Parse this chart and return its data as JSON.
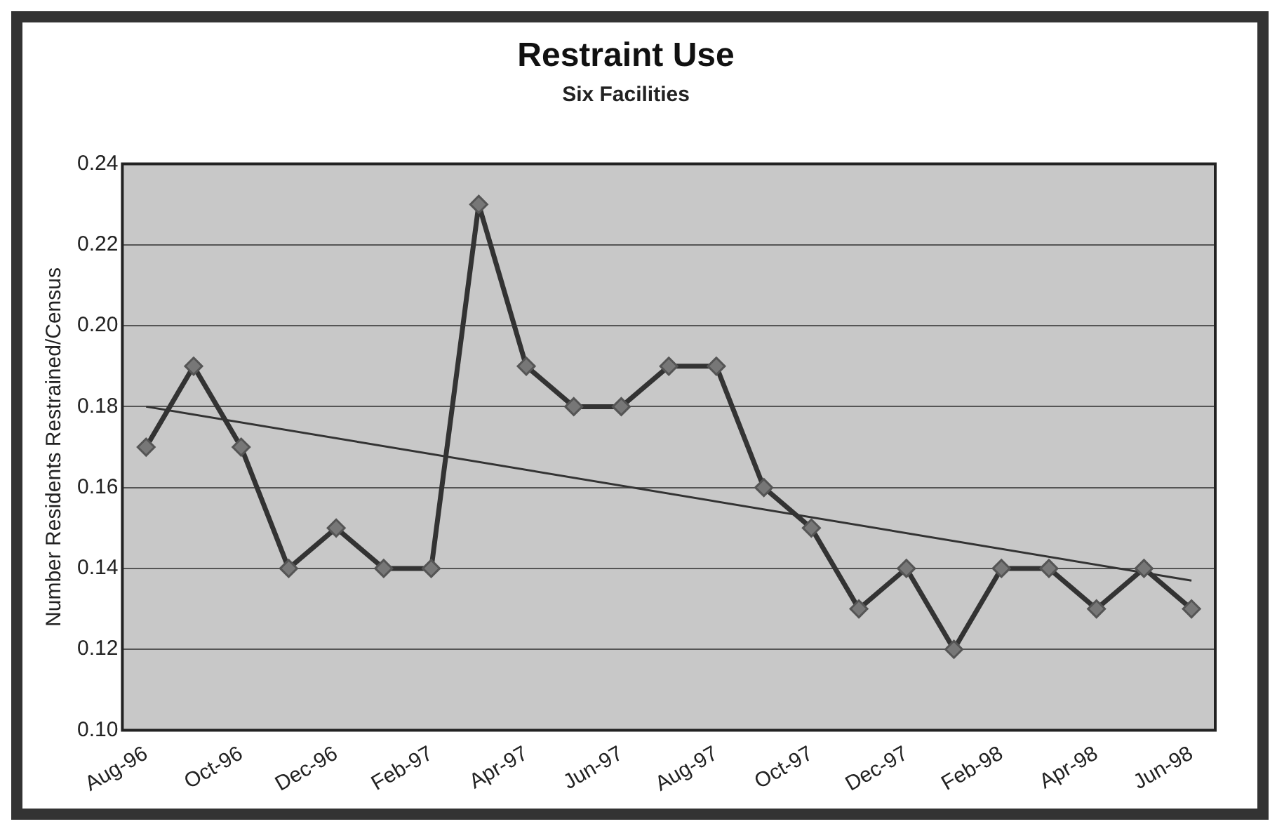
{
  "chart_data": {
    "type": "line",
    "title": "Restraint Use",
    "subtitle": "Six Facilities",
    "ylabel": "Number Residents Restrained/Census",
    "categories": [
      "Aug-96",
      null,
      "Oct-96",
      null,
      "Dec-96",
      null,
      "Feb-97",
      null,
      "Apr-97",
      null,
      "Jun-97",
      null,
      "Aug-97",
      null,
      "Oct-97",
      null,
      "Dec-97",
      null,
      "Feb-98",
      null,
      "Apr-98",
      null,
      "Jun-98"
    ],
    "series": [
      {
        "color": "#333333",
        "marker": "diamond",
        "values": [
          0.17,
          0.19,
          0.17,
          0.14,
          0.15,
          0.14,
          0.14,
          0.23,
          0.19,
          0.18,
          0.18,
          0.19,
          0.19,
          0.16,
          0.15,
          0.13,
          0.14,
          0.12,
          0.14,
          0.14,
          0.13,
          0.14,
          0.13
        ]
      },
      {
        "type": "line",
        "color": "#333333",
        "marker": "none",
        "x": [
          "Aug-96",
          "Jun-98"
        ],
        "values": [
          0.18,
          0.137
        ]
      }
    ],
    "ylim": [
      0.1,
      0.24
    ],
    "yticks": [
      {
        "value": 0.1,
        "label": "0.10"
      },
      {
        "value": 0.12,
        "label": "0.12"
      },
      {
        "value": 0.14,
        "label": "0.14"
      },
      {
        "value": 0.16,
        "label": "0.16"
      },
      {
        "value": 0.18,
        "label": "0.18"
      },
      {
        "value": 0.2,
        "label": "0.20"
      },
      {
        "value": 0.22,
        "label": "0.22"
      },
      {
        "value": 0.24,
        "label": "0.24"
      }
    ],
    "grid": "y",
    "line_style": "solid"
  }
}
